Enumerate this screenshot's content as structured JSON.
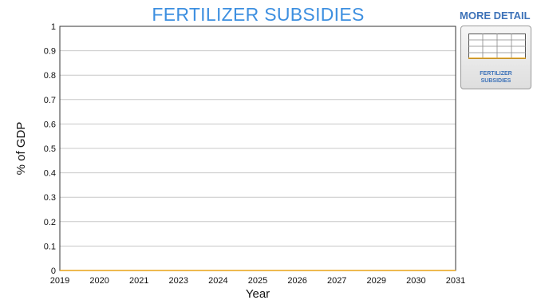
{
  "colors": {
    "title": "#3d8fe0",
    "series": "#e8a317",
    "grid": "#c8c8c8",
    "detail_text": "#3d72b8"
  },
  "more_detail": {
    "label": "MORE DETAIL",
    "card_label_line1": "FERTILIZER",
    "card_label_line2": "SUBSIDIES",
    "card_icon": "table-icon"
  },
  "chart_data": {
    "type": "line",
    "title": "FERTILIZER SUBSIDIES",
    "xlabel": "Year",
    "ylabel": "% of GDP",
    "x_tick_labels": [
      "2019",
      "2020",
      "2021",
      "2023",
      "2024",
      "2025",
      "2026",
      "2027",
      "2029",
      "2030",
      "2031"
    ],
    "yticks": [
      0,
      0.1,
      0.2,
      0.3,
      0.4,
      0.5,
      0.6,
      0.7,
      0.8,
      0.9,
      1
    ],
    "ylim": [
      0,
      1
    ],
    "grid": true,
    "series": [
      {
        "x": [
          "2019",
          "2020",
          "2021",
          "2023",
          "2024",
          "2025",
          "2026",
          "2027",
          "2029",
          "2030",
          "2031"
        ],
        "values": [
          0,
          0,
          0,
          0,
          0,
          0,
          0,
          0,
          0,
          0,
          0
        ]
      }
    ]
  }
}
